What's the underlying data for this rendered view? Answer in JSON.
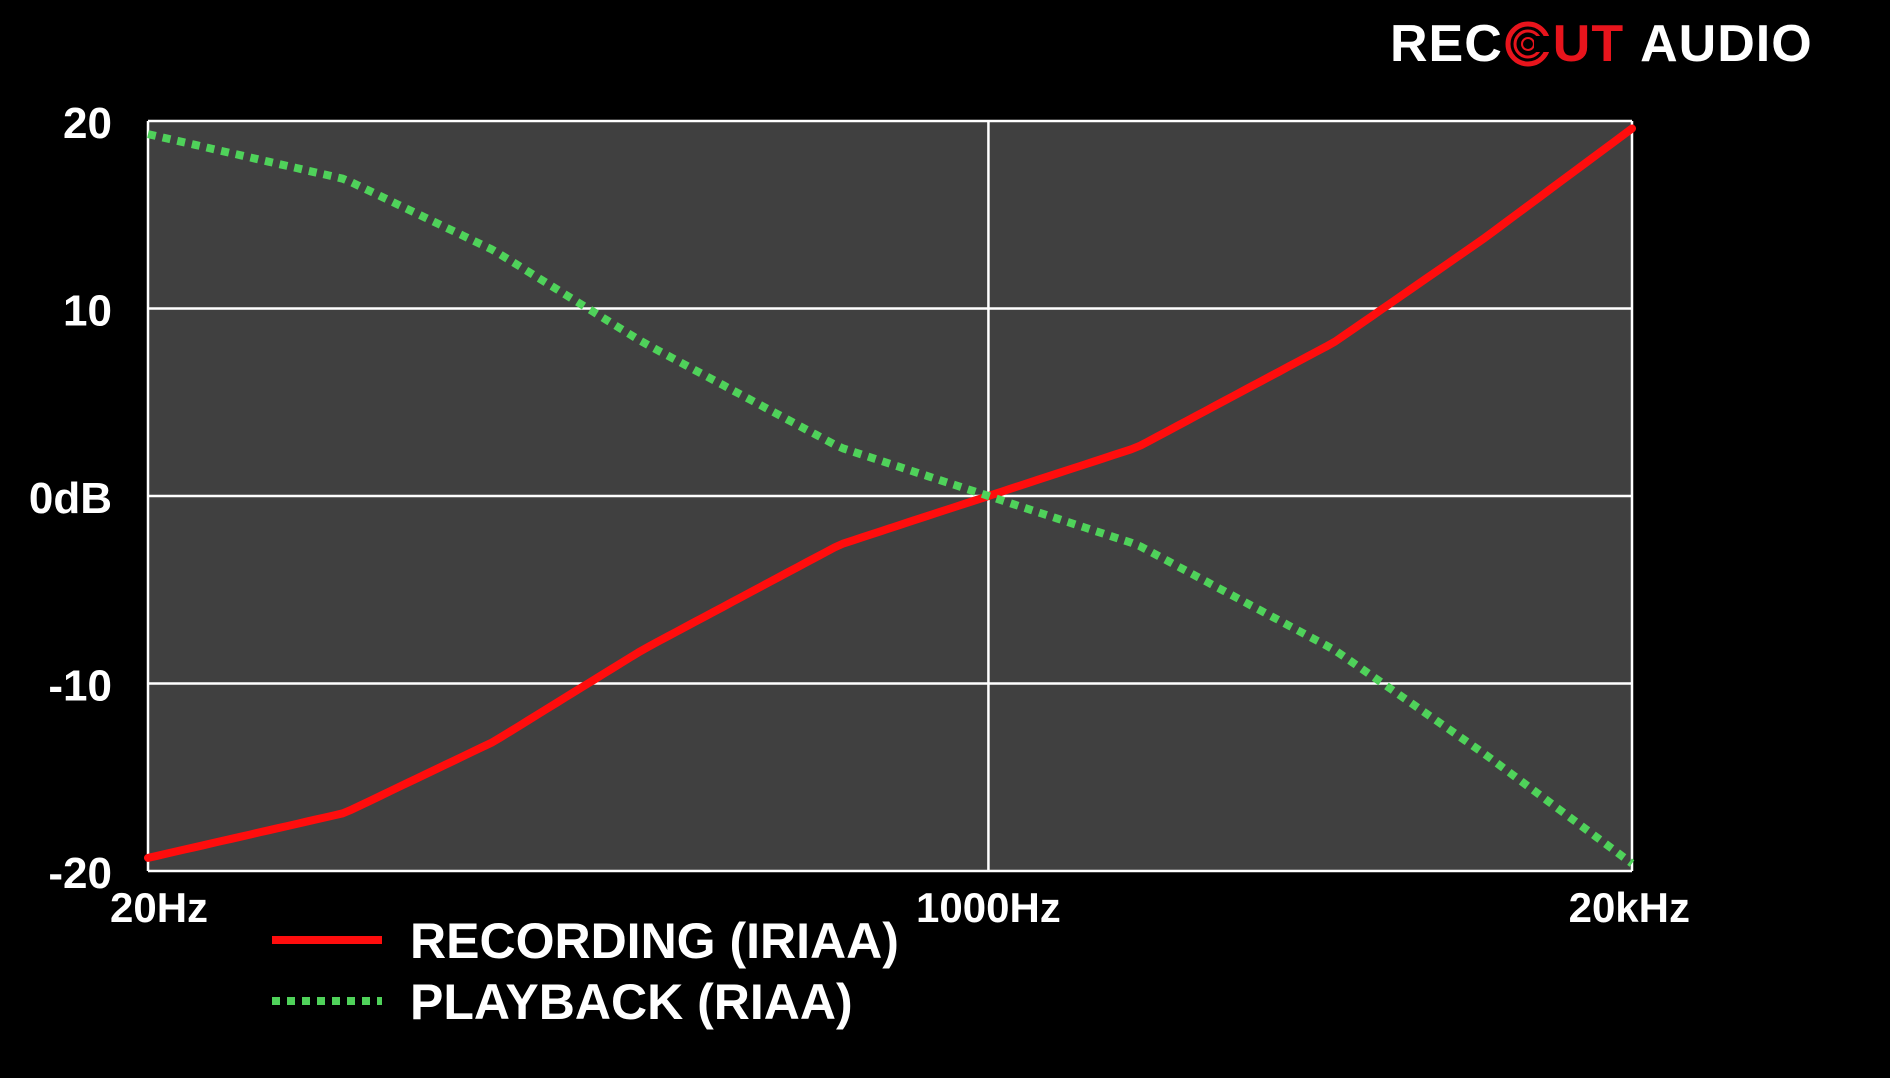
{
  "brand": {
    "part1": "REC",
    "part2": "UT",
    "part3": "AUDIO",
    "ring_icon": "record-ring-icon",
    "colors": {
      "white": "#ffffff",
      "red": "#e8141c"
    }
  },
  "chart_data": {
    "type": "line",
    "title": "",
    "xlabel": "",
    "ylabel": "",
    "x_scale": "log",
    "x_ticks": [
      {
        "value": 20,
        "label": "20Hz"
      },
      {
        "value": 1000,
        "label": "1000Hz"
      },
      {
        "value": 20000,
        "label": "20kHz"
      }
    ],
    "y_ticks": [
      {
        "value": 20,
        "label": "20"
      },
      {
        "value": 10,
        "label": "10"
      },
      {
        "value": 0,
        "label": "0dB"
      },
      {
        "value": -10,
        "label": "-10"
      },
      {
        "value": -20,
        "label": "-20"
      }
    ],
    "xlim": [
      20,
      20000
    ],
    "ylim": [
      -20,
      20
    ],
    "grid": true,
    "background": "#404040",
    "legend_position": "bottom-left",
    "series": [
      {
        "name": "RECORDING (IRIAA)",
        "color": "#ff0d0d",
        "style": "solid",
        "x": [
          20,
          50,
          100,
          200,
          500,
          1000,
          2000,
          5000,
          10000,
          20000
        ],
        "y": [
          -19.3,
          -16.9,
          -13.1,
          -8.2,
          -2.6,
          0,
          2.6,
          8.2,
          13.7,
          19.6
        ]
      },
      {
        "name": "PLAYBACK (RIAA)",
        "color": "#4fd25a",
        "style": "dotted",
        "x": [
          20,
          50,
          100,
          200,
          500,
          1000,
          2000,
          5000,
          10000,
          20000
        ],
        "y": [
          19.3,
          16.9,
          13.1,
          8.2,
          2.6,
          0,
          -2.6,
          -8.2,
          -13.7,
          -19.6
        ]
      }
    ]
  }
}
